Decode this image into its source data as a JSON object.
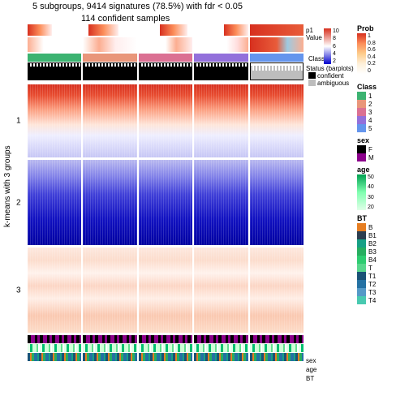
{
  "title": "5 subgroups, 9414 signatures (78.5%) with fdr < 0.05",
  "subtitle": "114 confident samples",
  "ylabel": "k-means with 3 groups",
  "row_labels": [
    "1",
    "2",
    "3"
  ],
  "top_annot_labels": [
    "p1",
    "Value",
    "Class",
    "Status (barplots)",
    "confident",
    "ambiguous"
  ],
  "bottom_annot_labels": [
    "sex",
    "age",
    "BT"
  ],
  "legends": {
    "prob": {
      "title": "Prob",
      "ticks": [
        "1",
        "0.8",
        "0.6",
        "0.4",
        "0.2",
        "0"
      ],
      "colors": [
        "#d7301f",
        "#fc8d59",
        "#fdcc8a",
        "#fef0d9",
        "#ffffff"
      ]
    },
    "value": {
      "ticks": [
        "10",
        "8",
        "6",
        "4",
        "2"
      ]
    },
    "class": {
      "title": "Class",
      "items": [
        {
          "l": "1",
          "c": "#3cb371"
        },
        {
          "l": "2",
          "c": "#e9967a"
        },
        {
          "l": "3",
          "c": "#db7093"
        },
        {
          "l": "4",
          "c": "#9370db"
        },
        {
          "l": "5",
          "c": "#6495ed"
        }
      ]
    },
    "sex": {
      "title": "sex",
      "items": [
        {
          "l": "F",
          "c": "#000000"
        },
        {
          "l": "M",
          "c": "#8b008b"
        }
      ]
    },
    "age": {
      "title": "age",
      "ticks": [
        "50",
        "40",
        "30",
        "20"
      ],
      "colors": [
        "#00a050",
        "#80ffb0",
        "#e0ffe8"
      ]
    },
    "bt": {
      "title": "BT",
      "items": [
        {
          "l": "B",
          "c": "#e67e22"
        },
        {
          "l": "B1",
          "c": "#2c3e50"
        },
        {
          "l": "B2",
          "c": "#16a085"
        },
        {
          "l": "B3",
          "c": "#27ae60"
        },
        {
          "l": "B4",
          "c": "#2ecc71"
        },
        {
          "l": "T",
          "c": "#58d68d"
        },
        {
          "l": "T1",
          "c": "#1a5276"
        },
        {
          "l": "T2",
          "c": "#2471a3"
        },
        {
          "l": "T3",
          "c": "#5499c7"
        },
        {
          "l": "T4",
          "c": "#48c9b0"
        }
      ]
    }
  },
  "heatmap": {
    "subgroups": 5,
    "section_heights": [
      90,
      105,
      105
    ],
    "gradients": [
      "linear-gradient(#d7301f 0%,#e84c30 15%,#fca082 35%,#fee5d9 55%,#eef 70%,#c6c6f5 100%)",
      "linear-gradient(#b8b8f0 0%,#8080e8 20%,#4040d8 40%,#1010c0 70%,#0000a0 100%)",
      "linear-gradient(#fde8de 0%,#fcdccc 15%,#fff2ec 30%,#fcd5c4 45%,#ffeee6 60%,#fac8b0 80%,#fddcc8 100%)"
    ],
    "stripe_overlay": "repeating-linear-gradient(90deg,rgba(255,255,255,0.15) 0 1px,transparent 1px 3px)"
  },
  "class_colors_per_subgroup": [
    "#3cb371",
    "#e9967a",
    "#db7093",
    "#9370db",
    "#6495ed"
  ],
  "p1_gradient": "linear-gradient(90deg,#e34a33,#fdcc8a,#fff,#fff)",
  "value_gradient": "linear-gradient(90deg,#fff,#d7301f,#fff,#9ecae1,#fff)",
  "status_confident_color": "#000000",
  "status_ambiguous_color": "#bdbdbd",
  "subgroup5_status": "ambiguous",
  "sex_gradient": "repeating-linear-gradient(90deg,#000 0 4px,#8b008b 4px 9px,#000 9px 12px,#8b008b 12px 15px)",
  "age_gradient": "repeating-linear-gradient(90deg,#e0ffe8 0 3px,#00c070 3px 6px,#d0ffd8 6px 11px,#60e090 11px 13px,#ffffff 13px 15px)",
  "bt_gradient": "repeating-linear-gradient(90deg,#1a5276 0 3px,#e67e22 3px 5px,#27ae60 5px 8px,#2471a3 8px 12px,#16a085 12px 14px)"
}
